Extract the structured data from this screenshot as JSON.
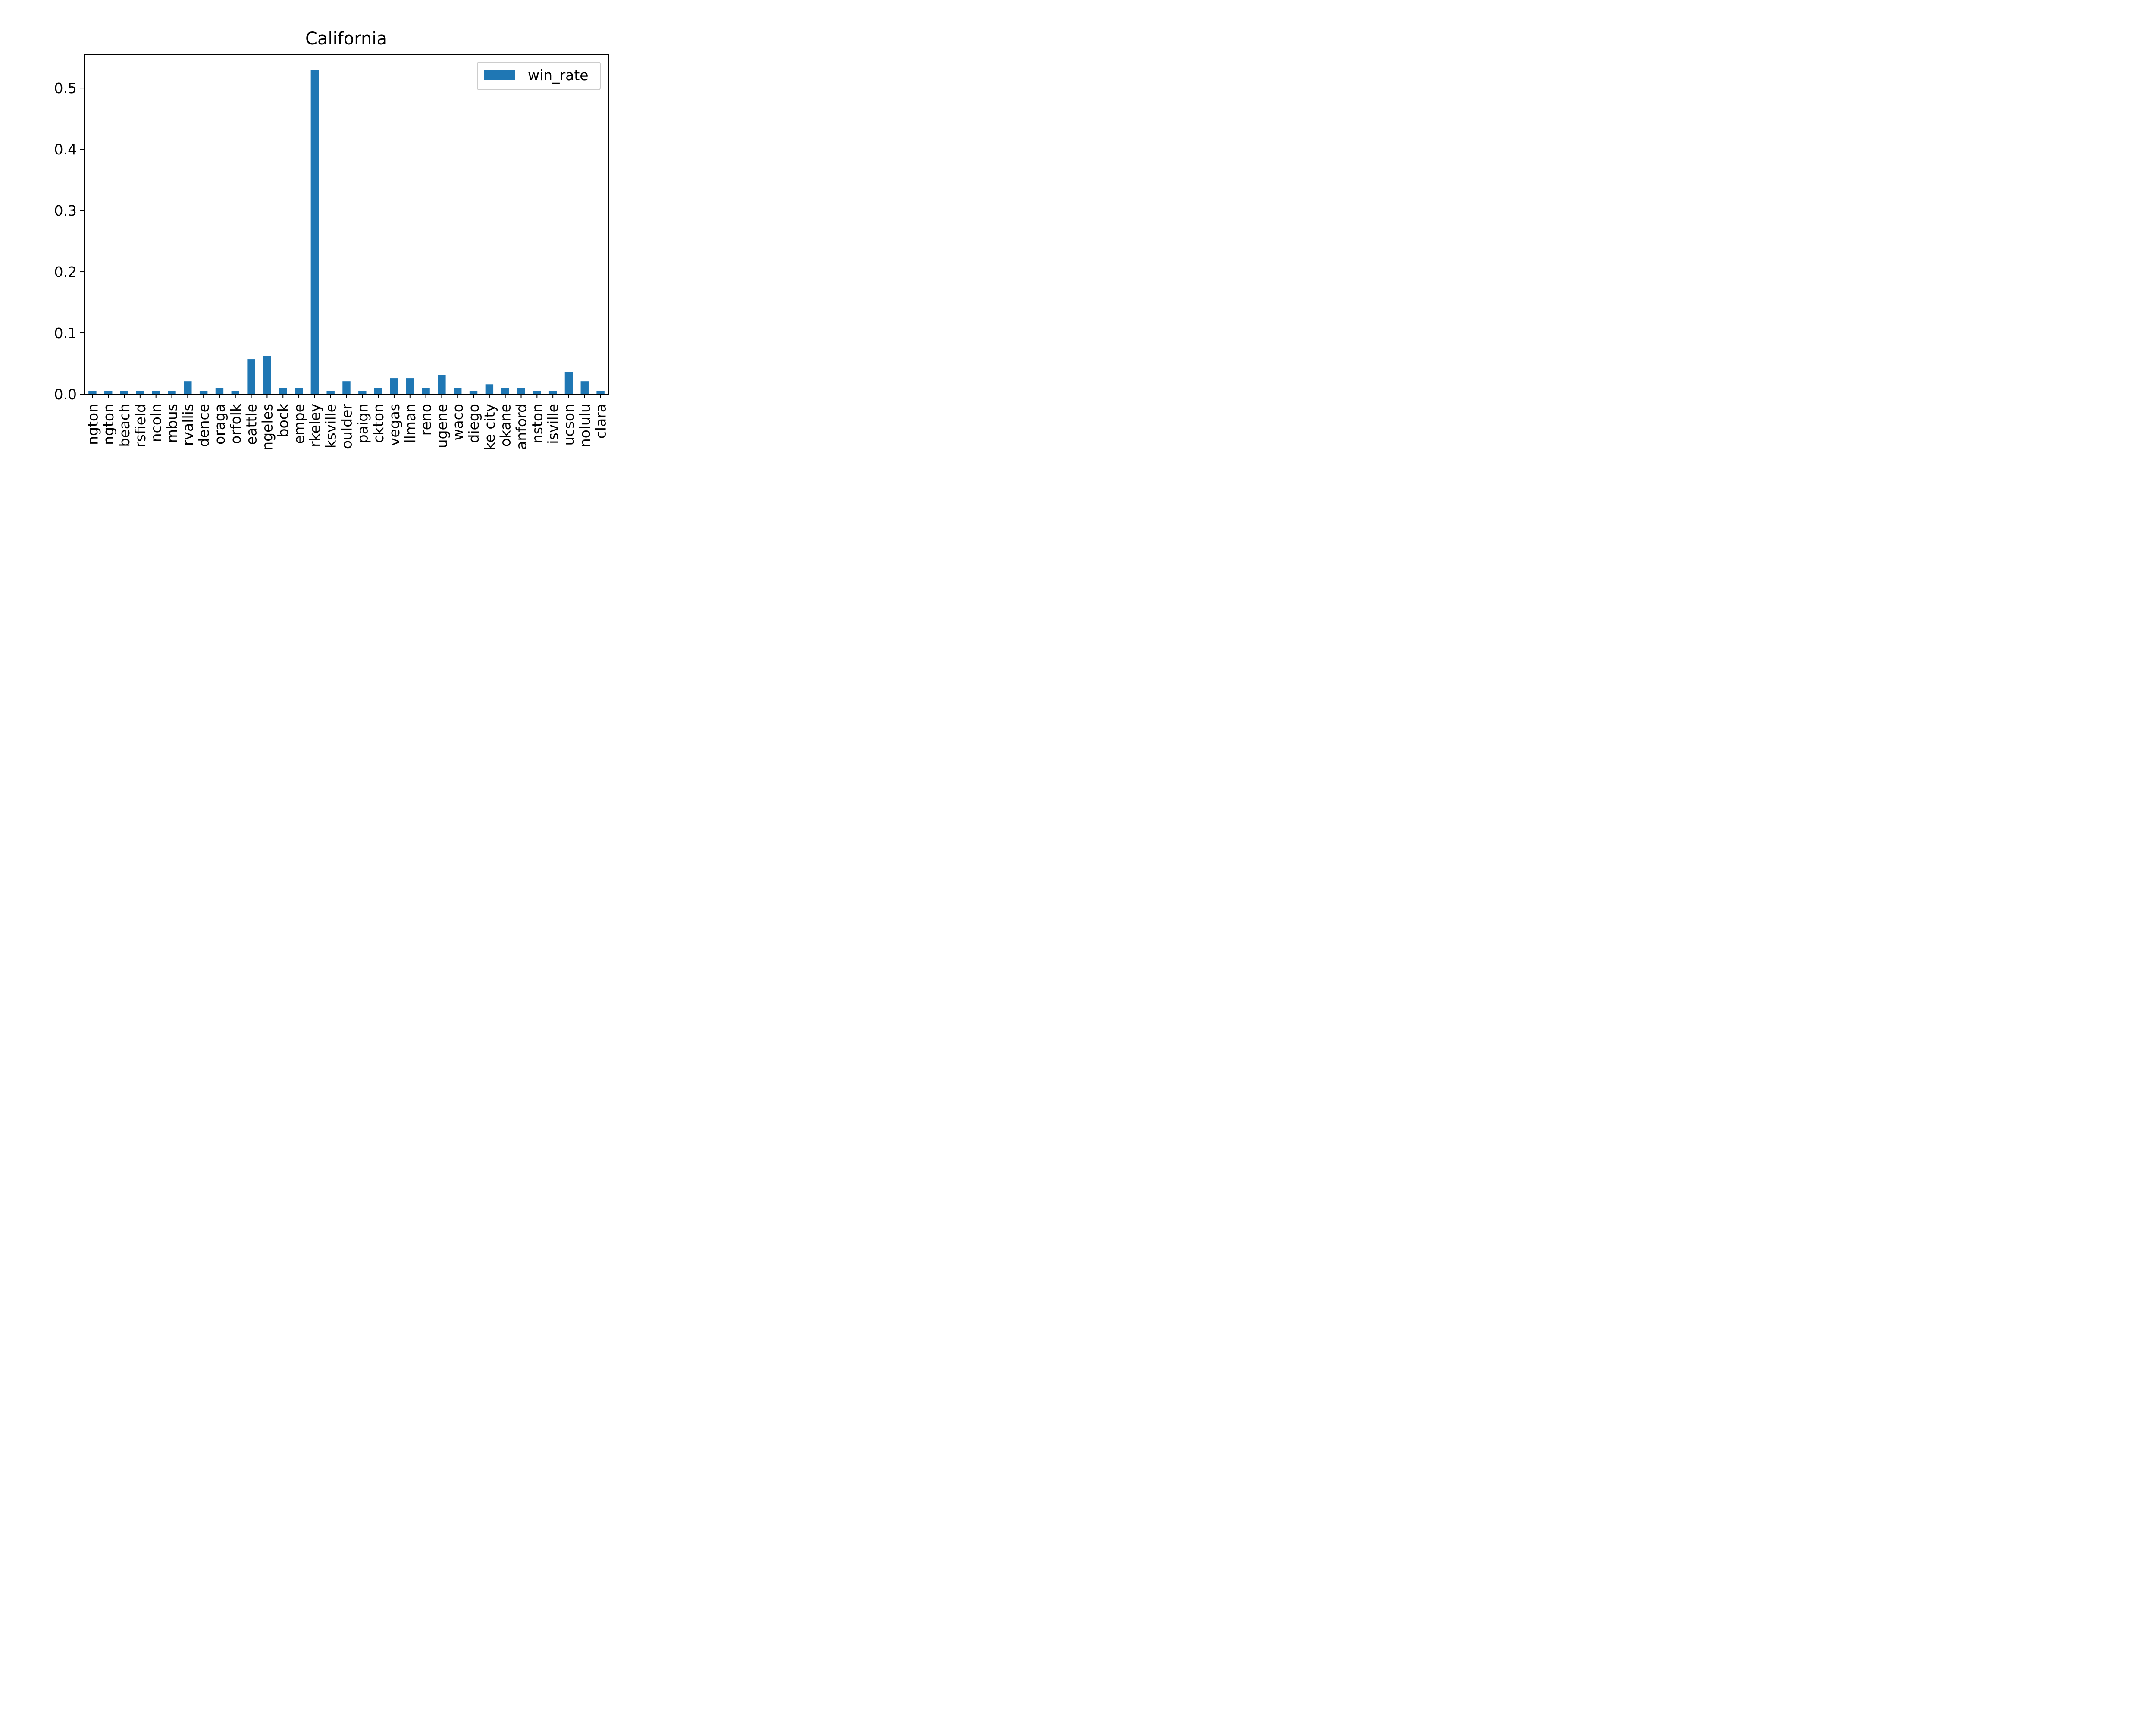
{
  "chart_data": {
    "type": "bar",
    "title": "California",
    "xlabel": "",
    "ylabel": "",
    "ylim": [
      0,
      0.555
    ],
    "yticks": [
      "0.0",
      "0.1",
      "0.2",
      "0.3",
      "0.4",
      "0.5"
    ],
    "legend": {
      "placement": "top-right",
      "entries": [
        "win_rate"
      ]
    },
    "grid": false,
    "bar_color": "#1f77b4",
    "categories": [
      "ngton",
      "ngton",
      "beach",
      "rsfield",
      "ncoln",
      "mbus",
      "rvallis",
      "dence",
      "oraga",
      "orfolk",
      "eattle",
      "ngeles",
      "bock",
      "empe",
      "rkeley",
      "ksville",
      "oulder",
      "paign",
      "ckton",
      "vegas",
      "llman",
      "reno",
      "ugene",
      "waco",
      "diego",
      "ke city",
      "okane",
      "anford",
      "nston",
      "isville",
      "ucson",
      "nolulu",
      "clara"
    ],
    "series": [
      {
        "name": "win_rate",
        "values": [
          0.005,
          0.005,
          0.005,
          0.005,
          0.005,
          0.005,
          0.021,
          0.005,
          0.01,
          0.005,
          0.057,
          0.062,
          0.01,
          0.01,
          0.529,
          0.005,
          0.021,
          0.005,
          0.01,
          0.026,
          0.026,
          0.01,
          0.031,
          0.01,
          0.005,
          0.016,
          0.01,
          0.01,
          0.005,
          0.005,
          0.036,
          0.021,
          0.005
        ]
      }
    ]
  }
}
